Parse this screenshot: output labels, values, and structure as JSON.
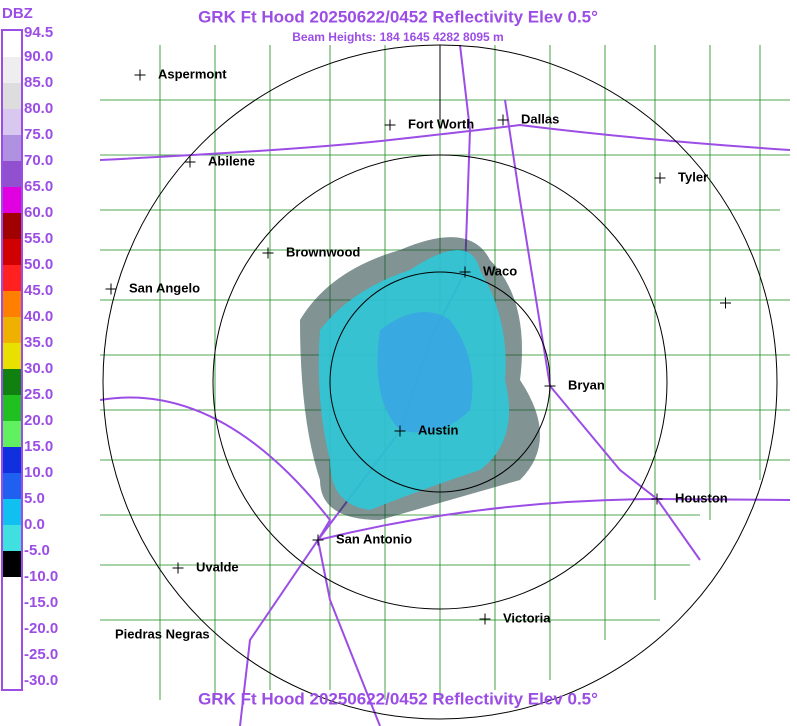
{
  "header": {
    "title": "GRK Ft Hood 20250622/0452 Reflectivity Elev 0.5°",
    "subtitle": "Beam Heights: 184 1645 4282 8095 m"
  },
  "footer": {
    "title": "GRK Ft Hood 20250622/0452 Reflectivity Elev 0.5°"
  },
  "colorbar": {
    "unit": "DBZ",
    "labels": [
      "94.5",
      "90.0",
      "85.0",
      "80.0",
      "75.0",
      "70.0",
      "65.0",
      "60.0",
      "55.0",
      "50.0",
      "45.0",
      "40.0",
      "35.0",
      "30.0",
      "25.0",
      "20.0",
      "15.0",
      "10.0",
      "5.0",
      "0.0",
      "-5.0",
      "-10.0",
      "-15.0",
      "-20.0",
      "-25.0",
      "-30.0"
    ]
  },
  "cities": [
    {
      "name": "Aspermont"
    },
    {
      "name": "Fort Worth"
    },
    {
      "name": "Dallas"
    },
    {
      "name": "Abilene"
    },
    {
      "name": "Tyler"
    },
    {
      "name": "Brownwood"
    },
    {
      "name": "Waco"
    },
    {
      "name": "San Angelo"
    },
    {
      "name": "Bryan"
    },
    {
      "name": "Austin"
    },
    {
      "name": "Houston"
    },
    {
      "name": "San Antonio"
    },
    {
      "name": "Uvalde"
    },
    {
      "name": "Victoria"
    },
    {
      "name": "Piedras Negras"
    }
  ]
}
